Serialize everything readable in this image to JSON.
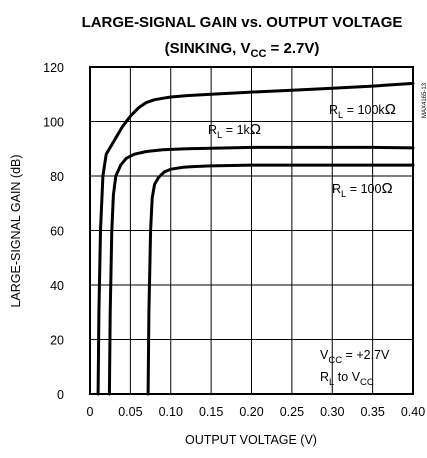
{
  "chart_data": {
    "type": "line",
    "title": "LARGE-SIGNAL GAIN vs. OUTPUT VOLTAGE",
    "subtitle": "(SINKING, VCC = 2.7V)",
    "subtitle_parts": {
      "pre": "(SINKING, V",
      "sub": "CC",
      "post": " = 2.7V)"
    },
    "xlabel": "OUTPUT VOLTAGE (V)",
    "ylabel": "LARGE-SIGNAL GAIN (dB)",
    "xlim": [
      0,
      0.4
    ],
    "ylim": [
      0,
      120
    ],
    "x_ticks": [
      "0",
      "0.05",
      "0.10",
      "0.15",
      "0.20",
      "0.25",
      "0.30",
      "0.35",
      "0.40"
    ],
    "y_ticks": [
      "0",
      "20",
      "40",
      "60",
      "80",
      "100",
      "120"
    ],
    "grid": true,
    "series": [
      {
        "name": "RL = 100kΩ",
        "label_parts": {
          "pre": "R",
          "sub": "L",
          "post": " = 100k",
          "unit": "Ω"
        },
        "x": [
          0.01,
          0.011,
          0.013,
          0.016,
          0.02,
          0.03,
          0.04,
          0.05,
          0.06,
          0.07,
          0.08,
          0.09,
          0.1,
          0.12,
          0.15,
          0.2,
          0.25,
          0.3,
          0.35,
          0.4
        ],
        "y": [
          0,
          30,
          60,
          80,
          88,
          93,
          98,
          102,
          105,
          107,
          108,
          108.5,
          109,
          109.5,
          110,
          110.8,
          111.5,
          112.2,
          113,
          114
        ]
      },
      {
        "name": "RL = 1kΩ",
        "label_parts": {
          "pre": "R",
          "sub": "L",
          "post": " = 1k",
          "unit": "Ω"
        },
        "x": [
          0.024,
          0.025,
          0.027,
          0.029,
          0.032,
          0.038,
          0.045,
          0.055,
          0.07,
          0.09,
          0.12,
          0.15,
          0.2,
          0.25,
          0.3,
          0.35,
          0.4
        ],
        "y": [
          0,
          30,
          60,
          73,
          80,
          84,
          86.5,
          88,
          89,
          89.6,
          90,
          90.2,
          90.5,
          90.5,
          90.5,
          90.5,
          90.3
        ]
      },
      {
        "name": "RL = 100Ω",
        "label_parts": {
          "pre": "R",
          "sub": "L",
          "post": " = 100",
          "unit": "Ω"
        },
        "x": [
          0.072,
          0.073,
          0.075,
          0.077,
          0.08,
          0.085,
          0.092,
          0.1,
          0.115,
          0.13,
          0.15,
          0.2,
          0.25,
          0.3,
          0.35,
          0.4
        ],
        "y": [
          0,
          30,
          60,
          72,
          77,
          79.5,
          81.5,
          82.5,
          83.2,
          83.5,
          83.7,
          84,
          84,
          84,
          84,
          84
        ]
      }
    ],
    "annotations": {
      "condition_line1": {
        "pre": "V",
        "sub": "CC",
        "post": " = +2.7V"
      },
      "condition_line2": {
        "pre": "R",
        "sub": "L",
        "post": " to V",
        "sub2": "CC"
      },
      "side_id": "MAX4165-13"
    }
  }
}
